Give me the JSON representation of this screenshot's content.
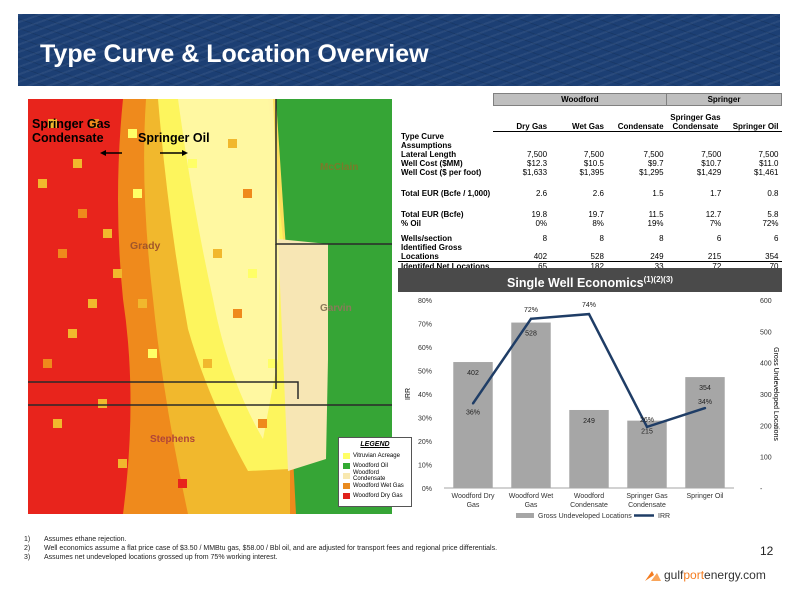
{
  "header": {
    "title": "Type Curve & Location Overview"
  },
  "map": {
    "labels": {
      "springer_gas_condensate": "Springer Gas Condensate",
      "springer_oil": "Springer Oil",
      "mcclain": "McClain",
      "grady": "Grady",
      "garvin": "Garvin",
      "stephens": "Stephens"
    },
    "legend": {
      "title": "LEGEND",
      "items": [
        {
          "label": "Vitruvian Acreage",
          "color": "#ffff66"
        },
        {
          "label": "Woodford Oil",
          "color": "#33aa33"
        },
        {
          "label": "Woodford Condensate",
          "color": "#f8e8b0"
        },
        {
          "label": "Woodford Wet Gas",
          "color": "#e98a1f"
        },
        {
          "label": "Woodford Dry Gas",
          "color": "#e0211c"
        }
      ]
    },
    "colors": {
      "dry_gas": "#e8241c",
      "wet_gas": "#ef8a1c",
      "gold": "#f1b82d",
      "condensate": "#f7e6b4",
      "oil": "#36a536",
      "vitruvian": "#ffff66"
    }
  },
  "table": {
    "group_headers": [
      "Woodford",
      "Springer"
    ],
    "columns": [
      "Dry Gas",
      "Wet Gas",
      "Condensate",
      "Springer Gas Condensate",
      "Springer Oil"
    ],
    "section_label": "Type Curve Assumptions",
    "rows": [
      {
        "label": "Lateral Length",
        "values": [
          "7,500",
          "7,500",
          "7,500",
          "7,500",
          "7,500"
        ]
      },
      {
        "label": "Well Cost ($MM)",
        "values": [
          "$12.3",
          "$10.5",
          "$9.7",
          "$10.7",
          "$11.0"
        ]
      },
      {
        "label": "Well Cost ($ per foot)",
        "values": [
          "$1,633",
          "$1,395",
          "$1,295",
          "$1,429",
          "$1,461"
        ]
      },
      {
        "label": "Total EUR (Bcfe / 1,000)",
        "values": [
          "2.6",
          "2.6",
          "1.5",
          "1.7",
          "0.8"
        ]
      },
      {
        "label": "Total EUR (Bcfe)",
        "values": [
          "19.8",
          "19.7",
          "11.5",
          "12.7",
          "5.8"
        ]
      },
      {
        "label": "% Oil",
        "values": [
          "0%",
          "8%",
          "19%",
          "7%",
          "72%"
        ]
      },
      {
        "label": "Wells/section",
        "values": [
          "8",
          "8",
          "8",
          "6",
          "6"
        ]
      },
      {
        "label": "Identified Gross Locations",
        "values": [
          "402",
          "528",
          "249",
          "215",
          "354"
        ]
      },
      {
        "label": "Identifed Net Locations",
        "values": [
          "65",
          "182",
          "33",
          "72",
          "70"
        ]
      }
    ]
  },
  "economics": {
    "title": "Single Well Economics",
    "superscript": "(1)(2)(3)"
  },
  "chart_data": {
    "type": "bar",
    "title": "Single Well Economics",
    "categories": [
      "Woodford Dry Gas",
      "Woodford Wet Gas",
      "Woodford Condensate",
      "Springer Gas Condensate",
      "Springer Oil"
    ],
    "series": [
      {
        "name": "Gross Undeveloped Locations",
        "type": "bar",
        "axis": "right",
        "values": [
          402,
          528,
          249,
          215,
          354
        ],
        "color": "#a6a6a6"
      },
      {
        "name": "IRR",
        "type": "line",
        "axis": "left",
        "values": [
          36,
          72,
          74,
          26,
          34
        ],
        "color": "#1f3d66"
      }
    ],
    "bar_labels": [
      "402",
      "528",
      "249",
      "215",
      "354"
    ],
    "line_labels": [
      "36%",
      "72%",
      "74%",
      "26%",
      "34%"
    ],
    "ylabel": "IRR",
    "y2label": "Gross Undeveloped Locations",
    "ylim": [
      0,
      80
    ],
    "y2lim": [
      0,
      600
    ],
    "y_ticks": [
      "0%",
      "10%",
      "20%",
      "30%",
      "40%",
      "50%",
      "60%",
      "70%",
      "80%"
    ],
    "y2_ticks": [
      "-",
      "100",
      "200",
      "300",
      "400",
      "500",
      "600"
    ],
    "legend": [
      "Gross Undeveloped Locations",
      "IRR"
    ],
    "legend_position": "bottom"
  },
  "footnotes": [
    {
      "num": "1)",
      "text": "Assumes ethane rejection."
    },
    {
      "num": "2)",
      "text": "Well economics assume a flat price case of $3.50 / MMBtu gas, $58.00 / Bbl oil, and are adjusted for transport fees and regional price differentials."
    },
    {
      "num": "3)",
      "text": "Assumes net undeveloped locations grossed up from 75% working interest."
    }
  ],
  "page_number": "12",
  "logo": {
    "text_main": "gulf",
    "text_accent": "port",
    "text_tail": "energy.com"
  }
}
